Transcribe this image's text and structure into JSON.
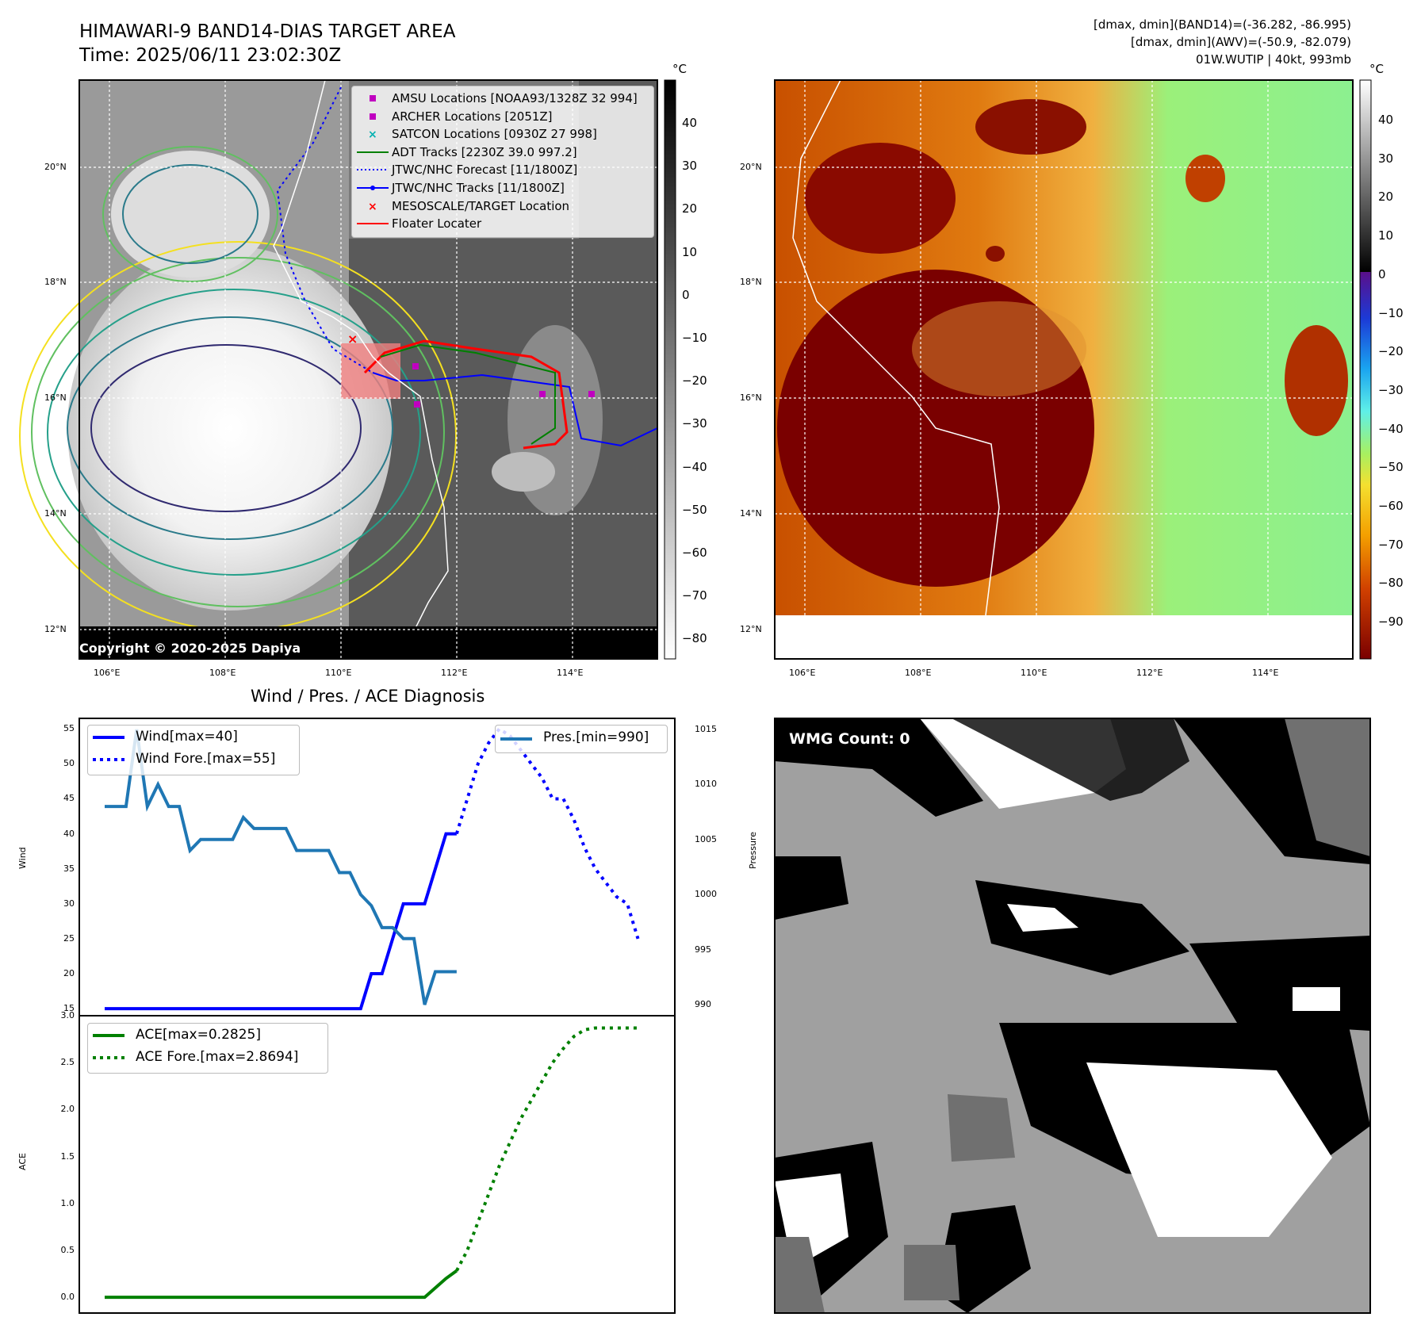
{
  "header": {
    "title": "HIMAWARI-9 BAND14-DIAS TARGET AREA",
    "time": "Time: 2025/06/11 23:02:30Z",
    "stats_line1": "[dmax, dmin](BAND14)=(-36.282, -86.995)",
    "stats_line2": "[dmax, dmin](AWV)=(-50.9, -82.079)",
    "stats_line3": "01W.WUTIP | 40kt, 993mb"
  },
  "map_axes": {
    "lon_ticks": [
      "106°E",
      "108°E",
      "110°E",
      "112°E",
      "114°E"
    ],
    "lat_ticks": [
      "20°N",
      "18°N",
      "16°N",
      "14°N",
      "12°N"
    ],
    "unit": "°C"
  },
  "colorbar_gray": {
    "ticks": [
      "40",
      "30",
      "20",
      "10",
      "0",
      "−10",
      "−20",
      "−30",
      "−40",
      "−50",
      "−60",
      "−70",
      "−80"
    ]
  },
  "colorbar_color": {
    "ticks": [
      "40",
      "30",
      "20",
      "10",
      "0",
      "−10",
      "−20",
      "−30",
      "−40",
      "−50",
      "−60",
      "−70",
      "−80",
      "−90"
    ]
  },
  "legend": {
    "items": [
      {
        "label": "AMSU Locations [NOAA93/1328Z 32 994]",
        "color": "#c000c0",
        "marker": "square"
      },
      {
        "label": "ARCHER Locations [2051Z]",
        "color": "#c000c0",
        "marker": "square"
      },
      {
        "label": "SATCON Locations [0930Z 27 998]",
        "color": "#00b0b0",
        "marker": "x"
      },
      {
        "label": "ADT Tracks [2230Z 39.0 997.2]",
        "color": "#008000",
        "marker": "line"
      },
      {
        "label": "JTWC/NHC Forecast [11/1800Z]",
        "color": "#0000ff",
        "marker": "dotted"
      },
      {
        "label": "JTWC/NHC Tracks [11/1800Z]",
        "color": "#0000ff",
        "marker": "line-dot"
      },
      {
        "label": "MESOSCALE/TARGET Location",
        "color": "#ff0000",
        "marker": "x"
      },
      {
        "label": "Floater Locater",
        "color": "#ff0000",
        "marker": "line"
      }
    ]
  },
  "copyright": "Copyright © 2020-2025 Dapiya",
  "wmg_label": "WMG Count: 0",
  "diag_title": "Wind / Pres. / ACE Diagnosis",
  "wind_legend": {
    "wind": "Wind[max=40]",
    "wind_fore": "Wind Fore.[max=55]",
    "pres": "Pres.[min=990]"
  },
  "ace_legend": {
    "ace": "ACE[max=0.2825]",
    "ace_fore": "ACE Fore.[max=2.8694]"
  },
  "colors": {
    "wind": "#0000ff",
    "pressure": "#1f77b4",
    "ace": "#008000",
    "track_red": "#ff0000"
  },
  "chart_data": [
    {
      "type": "line",
      "name": "wind_pressure",
      "ylabel": "Wind",
      "y2label": "Pressure",
      "ylim": [
        14,
        56.5
      ],
      "y2lim": [
        989,
        1016
      ],
      "yticks": [
        15,
        20,
        25,
        30,
        35,
        40,
        45,
        50,
        55
      ],
      "y2ticks": [
        990,
        995,
        1000,
        1005,
        1010,
        1015
      ],
      "xlim": [
        0,
        51
      ],
      "series": [
        {
          "name": "Wind[max=40]",
          "axis": "left",
          "style": "solid",
          "x": [
            0,
            1,
            2,
            3,
            4,
            5,
            6,
            7,
            8,
            9,
            10,
            11,
            12,
            13,
            14,
            15,
            16,
            17,
            18,
            19,
            20,
            21,
            22,
            23,
            24,
            25,
            26,
            27,
            28,
            29,
            30,
            31,
            32,
            33
          ],
          "values": [
            15,
            15,
            15,
            15,
            15,
            15,
            15,
            15,
            15,
            15,
            15,
            15,
            15,
            15,
            15,
            15,
            15,
            15,
            15,
            15,
            15,
            15,
            15,
            15,
            15,
            20,
            20,
            25,
            30,
            30,
            30,
            35,
            40,
            40
          ]
        },
        {
          "name": "Wind Fore.[max=55]",
          "axis": "left",
          "style": "dotted",
          "x": [
            33,
            34,
            35,
            36,
            37,
            38,
            39,
            40,
            41,
            42,
            43,
            44,
            45,
            46,
            47,
            48,
            49,
            50
          ],
          "values": [
            40,
            45,
            50,
            53,
            55,
            54,
            52,
            50,
            48,
            45,
            45,
            42,
            38,
            35,
            33,
            31,
            30,
            25
          ]
        },
        {
          "name": "Pres.[min=990]",
          "axis": "right",
          "style": "solid",
          "x": [
            0,
            1,
            2,
            3,
            4,
            5,
            6,
            7,
            8,
            9,
            10,
            11,
            12,
            13,
            14,
            15,
            16,
            17,
            18,
            19,
            20,
            21,
            22,
            23,
            24,
            25,
            26,
            27,
            28,
            29,
            30,
            31,
            32,
            33
          ],
          "values": [
            1008,
            1008,
            1008,
            1015,
            1008,
            1010,
            1008,
            1008,
            1004,
            1005,
            1005,
            1005,
            1005,
            1007,
            1006,
            1006,
            1006,
            1006,
            1004,
            1004,
            1004,
            1004,
            1002,
            1002,
            1000,
            999,
            997,
            997,
            996,
            996,
            990,
            993,
            993,
            993
          ]
        }
      ]
    },
    {
      "type": "line",
      "name": "ace",
      "ylabel": "ACE",
      "ylim": [
        -0.05,
        3.0
      ],
      "yticks": [
        0.0,
        0.5,
        1.0,
        1.5,
        2.0,
        2.5,
        3.0
      ],
      "xlim": [
        0,
        51
      ],
      "series": [
        {
          "name": "ACE[max=0.2825]",
          "style": "solid",
          "x": [
            0,
            5,
            10,
            15,
            20,
            25,
            30,
            31,
            32,
            33
          ],
          "values": [
            0,
            0,
            0,
            0,
            0,
            0,
            0,
            0.1,
            0.2,
            0.2825
          ]
        },
        {
          "name": "ACE Fore.[max=2.8694]",
          "style": "dotted",
          "x": [
            33,
            34,
            35,
            36,
            37,
            38,
            39,
            40,
            41,
            42,
            43,
            44,
            45,
            46,
            47,
            48,
            49,
            50
          ],
          "values": [
            0.2825,
            0.5,
            0.8,
            1.1,
            1.4,
            1.65,
            1.9,
            2.1,
            2.3,
            2.5,
            2.65,
            2.78,
            2.85,
            2.8694,
            2.8694,
            2.8694,
            2.8694,
            2.8694
          ]
        }
      ]
    }
  ]
}
